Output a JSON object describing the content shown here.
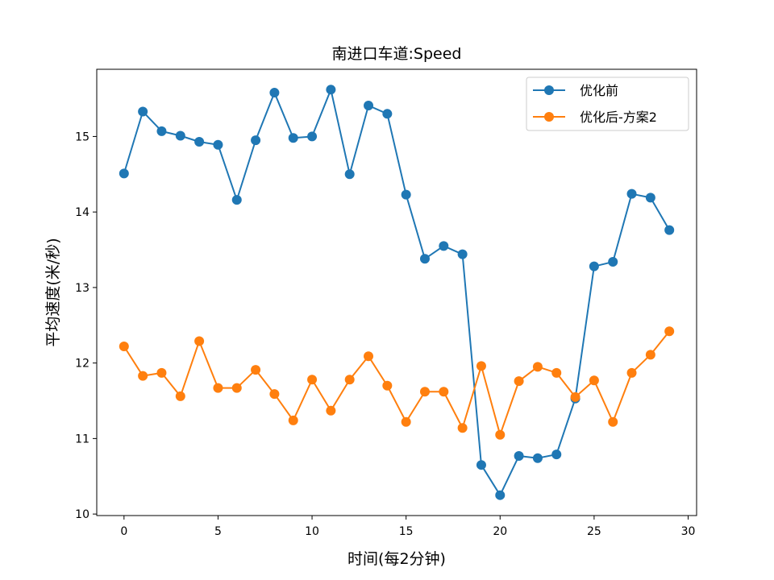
{
  "chart_data": {
    "type": "line",
    "title": "南进口车道:Speed",
    "xlabel": "时间(每2分钟)",
    "ylabel": "平均速度(米/秒)",
    "xlim": [
      -1.45,
      30.45
    ],
    "ylim": [
      9.98,
      15.89
    ],
    "xticks": [
      0,
      5,
      10,
      15,
      20,
      25,
      30
    ],
    "yticks": [
      10,
      11,
      12,
      13,
      14,
      15
    ],
    "legend_position": "upper-right",
    "x": [
      0,
      1,
      2,
      3,
      4,
      5,
      6,
      7,
      8,
      9,
      10,
      11,
      12,
      13,
      14,
      15,
      16,
      17,
      18,
      19,
      20,
      21,
      22,
      23,
      24,
      25,
      26,
      27,
      28,
      29
    ],
    "series": [
      {
        "name": "优化前",
        "color": "#1f77b4",
        "values": [
          14.51,
          15.33,
          15.07,
          15.01,
          14.93,
          14.89,
          14.16,
          14.95,
          15.58,
          14.98,
          15.0,
          15.62,
          14.5,
          15.41,
          15.3,
          14.23,
          13.38,
          13.55,
          13.44,
          10.65,
          10.25,
          10.77,
          10.74,
          10.79,
          11.53,
          13.28,
          13.34,
          14.24,
          14.19,
          13.76
        ]
      },
      {
        "name": "优化后-方案2",
        "color": "#ff7f0e",
        "values": [
          12.22,
          11.83,
          11.87,
          11.56,
          12.29,
          11.67,
          11.67,
          11.91,
          11.59,
          11.24,
          11.78,
          11.37,
          11.78,
          12.09,
          11.7,
          11.22,
          11.62,
          11.62,
          11.14,
          11.96,
          11.05,
          11.76,
          11.95,
          11.87,
          11.55,
          11.77,
          11.22,
          11.87,
          12.11,
          12.42
        ]
      }
    ]
  }
}
